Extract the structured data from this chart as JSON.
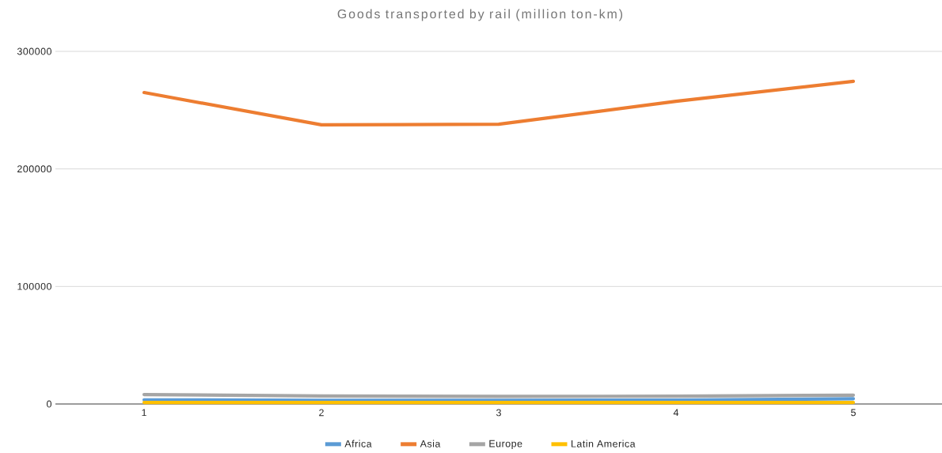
{
  "chart_data": {
    "type": "line",
    "title": "Goods transported by rail (million ton-km)",
    "categories": [
      "1",
      "2",
      "3",
      "4",
      "5"
    ],
    "series": [
      {
        "name": "Africa",
        "color": "#5b9bd5",
        "values": [
          3500,
          3200,
          3200,
          3300,
          4500
        ]
      },
      {
        "name": "Asia",
        "color": "#ed7d31",
        "values": [
          265000,
          237500,
          238000,
          257500,
          274500
        ]
      },
      {
        "name": "Europe",
        "color": "#a5a5a5",
        "values": [
          8000,
          6800,
          6500,
          6600,
          7500
        ]
      },
      {
        "name": "Latin America",
        "color": "#ffc000",
        "values": [
          1300,
          1200,
          1200,
          1200,
          1300
        ]
      }
    ],
    "ylim": [
      0,
      300000
    ],
    "yticks": [
      0,
      100000,
      200000,
      300000
    ],
    "grid": "y",
    "legend": "bottom",
    "marker": "none",
    "line_style": "solid"
  }
}
